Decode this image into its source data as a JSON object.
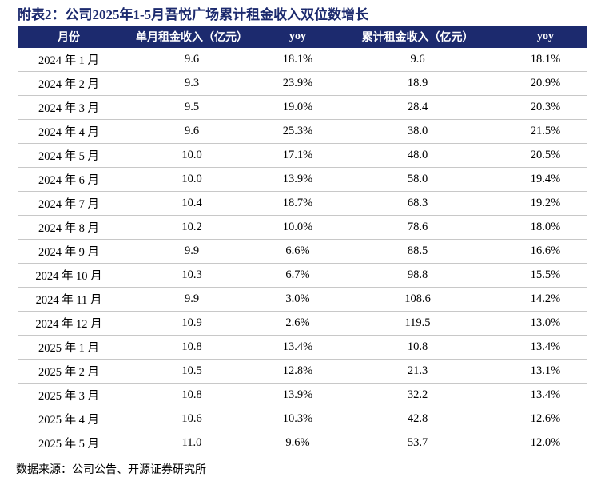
{
  "title": "附表2：公司2025年1-5月吾悦广场累计租金收入双位数增长",
  "table": {
    "header": [
      "月份",
      "单月租金收入（亿元）",
      "yoy",
      "累计租金收入（亿元）",
      "yoy"
    ],
    "rows": [
      [
        "2024 年 1 月",
        "9.6",
        "18.1%",
        "9.6",
        "18.1%"
      ],
      [
        "2024 年 2 月",
        "9.3",
        "23.9%",
        "18.9",
        "20.9%"
      ],
      [
        "2024 年 3 月",
        "9.5",
        "19.0%",
        "28.4",
        "20.3%"
      ],
      [
        "2024 年 4 月",
        "9.6",
        "25.3%",
        "38.0",
        "21.5%"
      ],
      [
        "2024 年 5 月",
        "10.0",
        "17.1%",
        "48.0",
        "20.5%"
      ],
      [
        "2024 年 6 月",
        "10.0",
        "13.9%",
        "58.0",
        "19.4%"
      ],
      [
        "2024 年 7 月",
        "10.4",
        "18.7%",
        "68.3",
        "19.2%"
      ],
      [
        "2024 年 8 月",
        "10.2",
        "10.0%",
        "78.6",
        "18.0%"
      ],
      [
        "2024 年 9 月",
        "9.9",
        "6.6%",
        "88.5",
        "16.6%"
      ],
      [
        "2024 年 10 月",
        "10.3",
        "6.7%",
        "98.8",
        "15.5%"
      ],
      [
        "2024 年 11 月",
        "9.9",
        "3.0%",
        "108.6",
        "14.2%"
      ],
      [
        "2024 年 12 月",
        "10.9",
        "2.6%",
        "119.5",
        "13.0%"
      ],
      [
        "2025 年 1 月",
        "10.8",
        "13.4%",
        "10.8",
        "13.4%"
      ],
      [
        "2025 年 2 月",
        "10.5",
        "12.8%",
        "21.3",
        "13.1%"
      ],
      [
        "2025 年 3 月",
        "10.8",
        "13.9%",
        "32.2",
        "13.4%"
      ],
      [
        "2025 年 4 月",
        "10.6",
        "10.3%",
        "42.8",
        "12.6%"
      ],
      [
        "2025 年 5 月",
        "11.0",
        "9.6%",
        "53.7",
        "12.0%"
      ]
    ]
  },
  "source": "数据来源：公司公告、开源证券研究所"
}
